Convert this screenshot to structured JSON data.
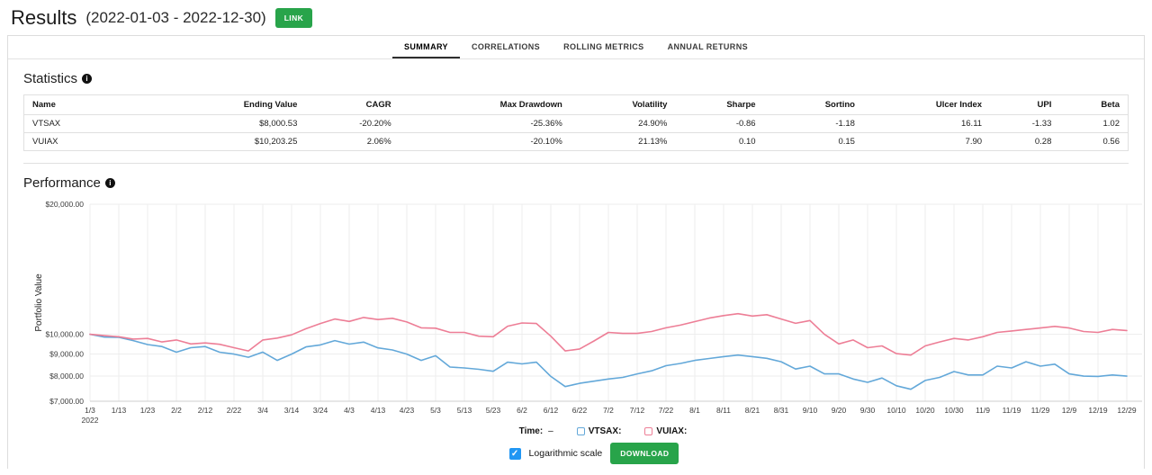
{
  "header": {
    "title": "Results",
    "date_range": "(2022-01-03 - 2022-12-30)",
    "link_button": "LINK"
  },
  "icons": {
    "info": "i",
    "check": "✓"
  },
  "tabs": [
    {
      "label": "SUMMARY",
      "active": true
    },
    {
      "label": "CORRELATIONS",
      "active": false
    },
    {
      "label": "ROLLING METRICS",
      "active": false
    },
    {
      "label": "ANNUAL RETURNS",
      "active": false
    }
  ],
  "statistics": {
    "heading": "Statistics",
    "columns": [
      "Name",
      "Ending Value",
      "CAGR",
      "Max Drawdown",
      "Volatility",
      "Sharpe",
      "Sortino",
      "Ulcer Index",
      "UPI",
      "Beta"
    ],
    "rows": [
      [
        "VTSAX",
        "$8,000.53",
        "-20.20%",
        "-25.36%",
        "24.90%",
        "-0.86",
        "-1.18",
        "16.11",
        "-1.33",
        "1.02"
      ],
      [
        "VUIAX",
        "$10,203.25",
        "2.06%",
        "-20.10%",
        "21.13%",
        "0.10",
        "0.15",
        "7.90",
        "0.28",
        "0.56"
      ]
    ]
  },
  "performance": {
    "heading": "Performance"
  },
  "chart_data": {
    "type": "line",
    "ylabel": "Portfolio Value",
    "log_scale": true,
    "ylim": [
      7000,
      20000
    ],
    "y_ticks": [
      20000,
      10000,
      9000,
      8000,
      7000
    ],
    "y_tick_labels": [
      "$20,000.00",
      "$10,000.00",
      "$9,000.00",
      "$8,000.00",
      "$7,000.00"
    ],
    "x_tick_labels": [
      "1/3",
      "1/13",
      "1/23",
      "2/2",
      "2/12",
      "2/22",
      "3/4",
      "3/14",
      "3/24",
      "4/3",
      "4/13",
      "4/23",
      "5/3",
      "5/13",
      "5/23",
      "6/2",
      "6/12",
      "6/22",
      "7/2",
      "7/12",
      "7/22",
      "8/1",
      "8/11",
      "8/21",
      "8/31",
      "9/10",
      "9/20",
      "9/30",
      "10/10",
      "10/20",
      "10/30",
      "11/9",
      "11/19",
      "11/29",
      "12/9",
      "12/19",
      "12/29"
    ],
    "x_tick_step_days": 10,
    "x_year_label": "2022",
    "x_max_days": 360,
    "x_step_days": 5,
    "grid": true,
    "legend_position": "bottom",
    "series": [
      {
        "name": "VTSAX",
        "color": "#63a8d9",
        "values": [
          10000,
          9850,
          9840,
          9670,
          9470,
          9370,
          9090,
          9310,
          9370,
          9090,
          9000,
          8850,
          9095,
          8700,
          9000,
          9350,
          9450,
          9670,
          9490,
          9590,
          9300,
          9200,
          9000,
          8700,
          8920,
          8400,
          8360,
          8300,
          8210,
          8620,
          8540,
          8620,
          7990,
          7570,
          7700,
          7790,
          7880,
          7950,
          8100,
          8230,
          8460,
          8560,
          8700,
          8790,
          8880,
          8950,
          8880,
          8800,
          8640,
          8310,
          8440,
          8100,
          8100,
          7880,
          7740,
          7920,
          7600,
          7460,
          7820,
          7950,
          8200,
          8050,
          8050,
          8440,
          8360,
          8640,
          8440,
          8530,
          8100,
          8000,
          7990,
          8050,
          8000
        ]
      },
      {
        "name": "VUIAX",
        "color": "#ed7e96",
        "values": [
          10000,
          9930,
          9870,
          9750,
          9780,
          9600,
          9700,
          9500,
          9550,
          9480,
          9310,
          9150,
          9700,
          9800,
          9970,
          10300,
          10590,
          10850,
          10710,
          10940,
          10820,
          10890,
          10680,
          10350,
          10330,
          10100,
          10100,
          9900,
          9870,
          10440,
          10620,
          10590,
          9900,
          9150,
          9250,
          9650,
          10100,
          10050,
          10050,
          10150,
          10350,
          10500,
          10700,
          10900,
          11050,
          11160,
          11020,
          11100,
          10850,
          10600,
          10760,
          10000,
          9500,
          9700,
          9310,
          9400,
          9020,
          8950,
          9400,
          9600,
          9780,
          9700,
          9870,
          10100,
          10180,
          10260,
          10340,
          10430,
          10340,
          10150,
          10100,
          10260,
          10203
        ]
      }
    ]
  },
  "legend": {
    "time_label": "Time:",
    "time_value": "–",
    "items": [
      {
        "label": "VTSAX:",
        "color": "#63a8d9"
      },
      {
        "label": "VUIAX:",
        "color": "#ed7e96"
      }
    ]
  },
  "controls": {
    "log_label": "Logarithmic scale",
    "log_checked": true,
    "download_label": "DOWNLOAD"
  }
}
